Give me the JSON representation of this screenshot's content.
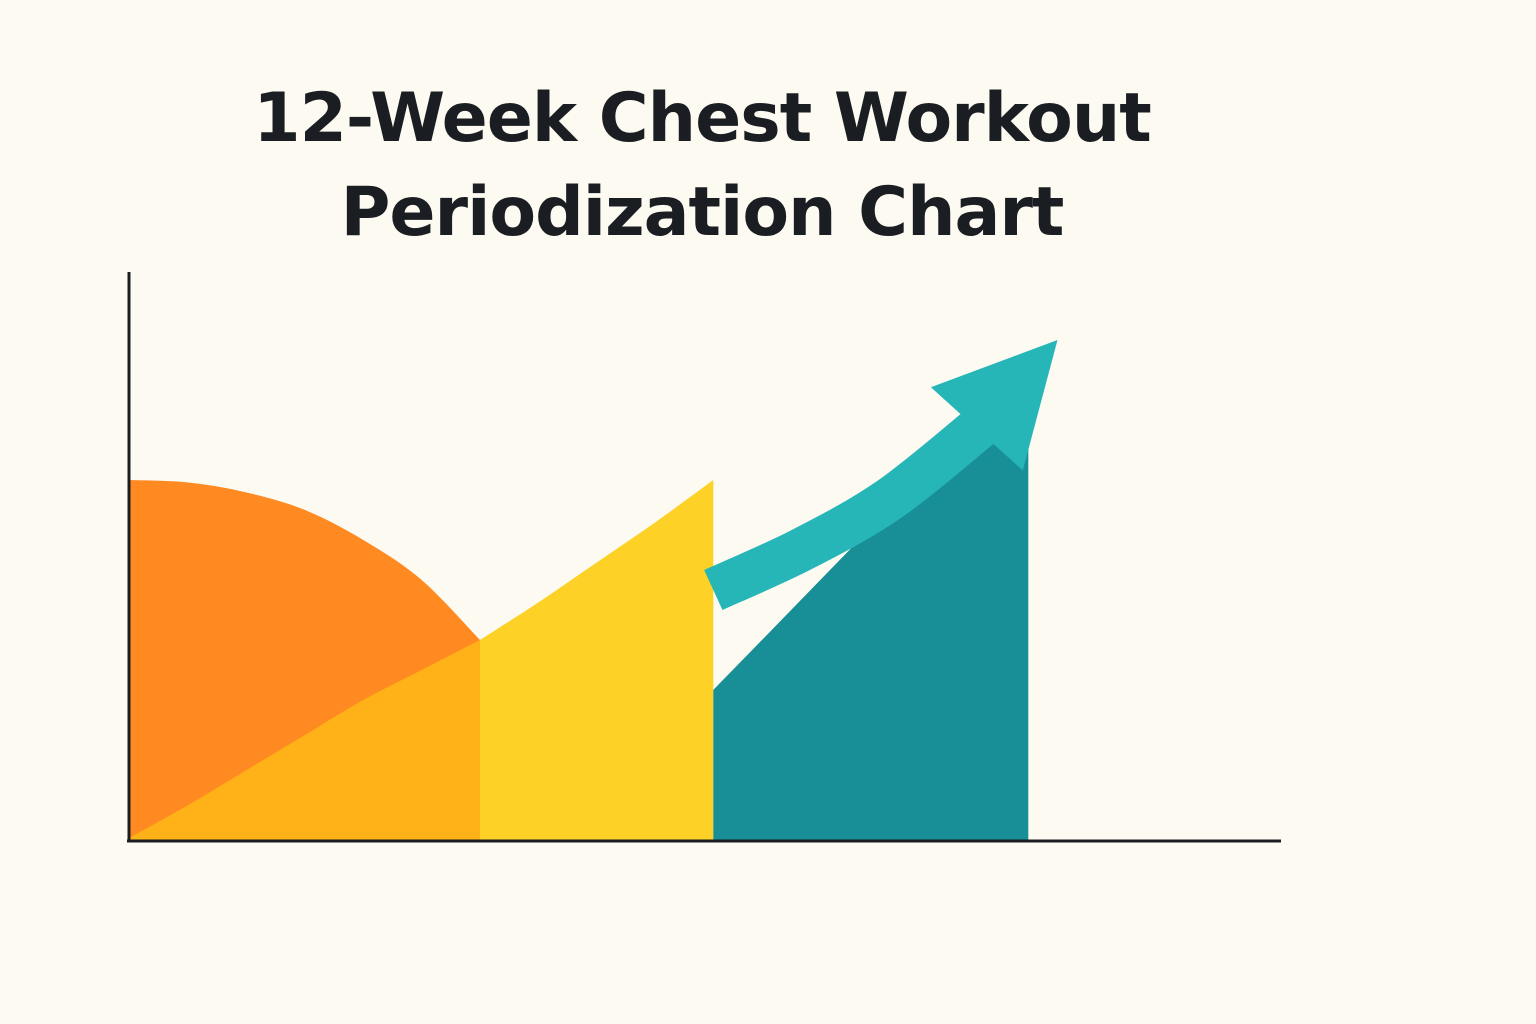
{
  "chart_data": {
    "type": "area",
    "title_lines": [
      "12-Week Chest Workout",
      "Periodization Chart"
    ],
    "xlabel": "",
    "ylabel": "",
    "grid": false,
    "xlim": [
      0,
      12
    ],
    "ylim": [
      0,
      100
    ],
    "phases": [
      {
        "color": "#ff8a22",
        "curve": [
          [
            0,
            72
          ],
          [
            1,
            71.5
          ],
          [
            2,
            69.5
          ],
          [
            3,
            66
          ],
          [
            4,
            60
          ],
          [
            5,
            52
          ],
          [
            6,
            40
          ]
        ]
      },
      {
        "color": "#ffb218",
        "curve": [
          [
            0,
            0.5
          ],
          [
            1,
            7
          ],
          [
            2,
            14
          ],
          [
            3,
            21
          ],
          [
            4,
            28
          ],
          [
            5,
            34
          ],
          [
            6,
            40
          ]
        ]
      },
      {
        "color": "#fdd126",
        "curve": [
          [
            6,
            40
          ],
          [
            7,
            47.5
          ],
          [
            8,
            55.5
          ],
          [
            9,
            63.5
          ],
          [
            10,
            72
          ]
        ]
      },
      {
        "color": "#188f97",
        "curve": [
          [
            10,
            30
          ],
          [
            11,
            42
          ],
          [
            12,
            54
          ],
          [
            13,
            66
          ],
          [
            14,
            78
          ],
          [
            15.4,
            91
          ]
        ]
      }
    ],
    "trend_arrow": {
      "color": "#26b6b8",
      "curve": [
        [
          10,
          50
        ],
        [
          11.5,
          58
        ],
        [
          13,
          68
        ],
        [
          14.5,
          82
        ],
        [
          15.9,
          100
        ]
      ]
    }
  }
}
